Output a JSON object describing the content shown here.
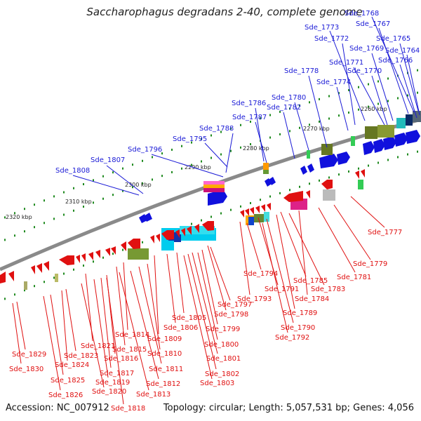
{
  "title": "Saccharophagus degradans 2-40, complete genome",
  "footer": {
    "accession": "Accession: NC_007912",
    "summary": "Topology: circular; Length: 5,057,531 bp; Genes: 4,056"
  },
  "colors": {
    "forward": "#1010dd",
    "reverse": "#e01010",
    "backbone": "#8a8a8a",
    "ticks": "#1f8a1f"
  },
  "kbp_labels": [
    "2260 kbp",
    "2270 kbp",
    "2280 kbp",
    "2290 kbp",
    "2300 kbp",
    "2310 kbp",
    "2320 kbp"
  ],
  "top_genes": [
    "Sde_1768",
    "Sde_1773",
    "Sde_1767",
    "Sde_1772",
    "Sde_1765",
    "Sde_1769",
    "Sde_1764",
    "Sde_1771",
    "Sde_1766",
    "Sde_1770",
    "Sde_1778",
    "Sde_1774",
    "Sde_1780",
    "Sde_1786",
    "Sde_1782",
    "Sde_1787",
    "Sde_1788",
    "Sde_1795",
    "Sde_1796",
    "Sde_1807",
    "Sde_1808"
  ],
  "bottom_genes": [
    "Sde_1777",
    "Sde_1779",
    "Sde_1781",
    "Sde_1794",
    "Sde_1785",
    "Sde_1783",
    "Sde_1791",
    "Sde_1793",
    "Sde_1784",
    "Sde_1797",
    "Sde_1798",
    "Sde_1789",
    "Sde_1790",
    "Sde_1805",
    "Sde_1806",
    "Sde_1799",
    "Sde_1792",
    "Sde_1809",
    "Sde_1800",
    "Sde_1814",
    "Sde_1821",
    "Sde_1815",
    "Sde_1810",
    "Sde_1829",
    "Sde_1823",
    "Sde_1816",
    "Sde_1801",
    "Sde_1824",
    "Sde_1817",
    "Sde_1811",
    "Sde_1830",
    "Sde_1802",
    "Sde_1825",
    "Sde_1819",
    "Sde_1812",
    "Sde_1803",
    "Sde_1820",
    "Sde_1813",
    "Sde_1826",
    "Sde_1818"
  ]
}
